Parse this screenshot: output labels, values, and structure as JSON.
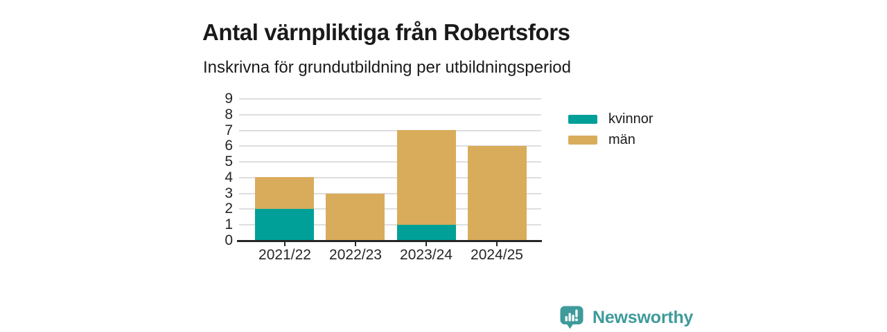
{
  "header": {
    "title": "Antal värnpliktiga från Robertsfors",
    "subtitle": "Inskrivna för grundutbildning per utbildningsperiod"
  },
  "chart_data": {
    "type": "bar",
    "stacked": true,
    "title": "Antal värnpliktiga från Robertsfors",
    "subtitle": "Inskrivna för grundutbildning per utbildningsperiod",
    "categories": [
      "2021/22",
      "2022/23",
      "2023/24",
      "2024/25"
    ],
    "series": [
      {
        "name": "kvinnor",
        "color": "#00A099",
        "values": [
          2,
          0,
          1,
          0
        ]
      },
      {
        "name": "män",
        "color": "#D9AC5C",
        "values": [
          2,
          3,
          6,
          6
        ]
      }
    ],
    "totals": [
      4,
      3,
      7,
      6
    ],
    "xlabel": "",
    "ylabel": "",
    "ylim": [
      0,
      9
    ],
    "yticks": [
      0,
      1,
      2,
      3,
      4,
      5,
      6,
      7,
      8,
      9
    ],
    "grid": true,
    "gridline_color": "#DEDEDE",
    "axis_color": "#262626",
    "legend_position": "right"
  },
  "legend": {
    "items": [
      {
        "label": "kvinnor",
        "color": "#00A099"
      },
      {
        "label": "män",
        "color": "#D9AC5C"
      }
    ]
  },
  "branding": {
    "name": "Newsworthy",
    "icon": "newsworthy-speech-bubble-chart-icon",
    "color": "#3E9A9B"
  }
}
